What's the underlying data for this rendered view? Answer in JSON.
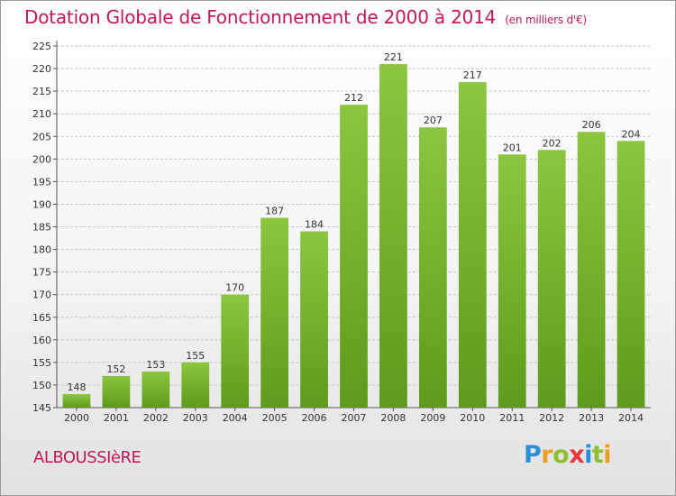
{
  "title": "Dotation Globale de Fonctionnement de 2000 à 2014",
  "subtitle": "(en milliers d'€)",
  "commune": "ALBOUSSIèRE",
  "logo": {
    "letters": [
      "P",
      "r",
      "o",
      "x",
      "i",
      "t",
      "i"
    ],
    "colors": [
      "#2b8fd6",
      "#e9a021",
      "#8dbf2e",
      "#e23a3a",
      "#2b8fd6",
      "#8dbf2e",
      "#e9a021"
    ]
  },
  "chart_data": {
    "type": "bar",
    "categories": [
      "2000",
      "2001",
      "2002",
      "2003",
      "2004",
      "2005",
      "2006",
      "2007",
      "2008",
      "2009",
      "2010",
      "2011",
      "2012",
      "2013",
      "2014"
    ],
    "values": [
      148,
      152,
      153,
      155,
      170,
      187,
      184,
      212,
      221,
      207,
      217,
      201,
      202,
      206,
      204
    ],
    "ylim": [
      145,
      225
    ],
    "yticks": [
      145,
      150,
      155,
      160,
      165,
      170,
      175,
      180,
      185,
      190,
      195,
      200,
      205,
      210,
      215,
      220,
      225
    ],
    "grid": true,
    "bar_color": "#8cc63f",
    "bar_color_dark": "#5e9a1c"
  }
}
